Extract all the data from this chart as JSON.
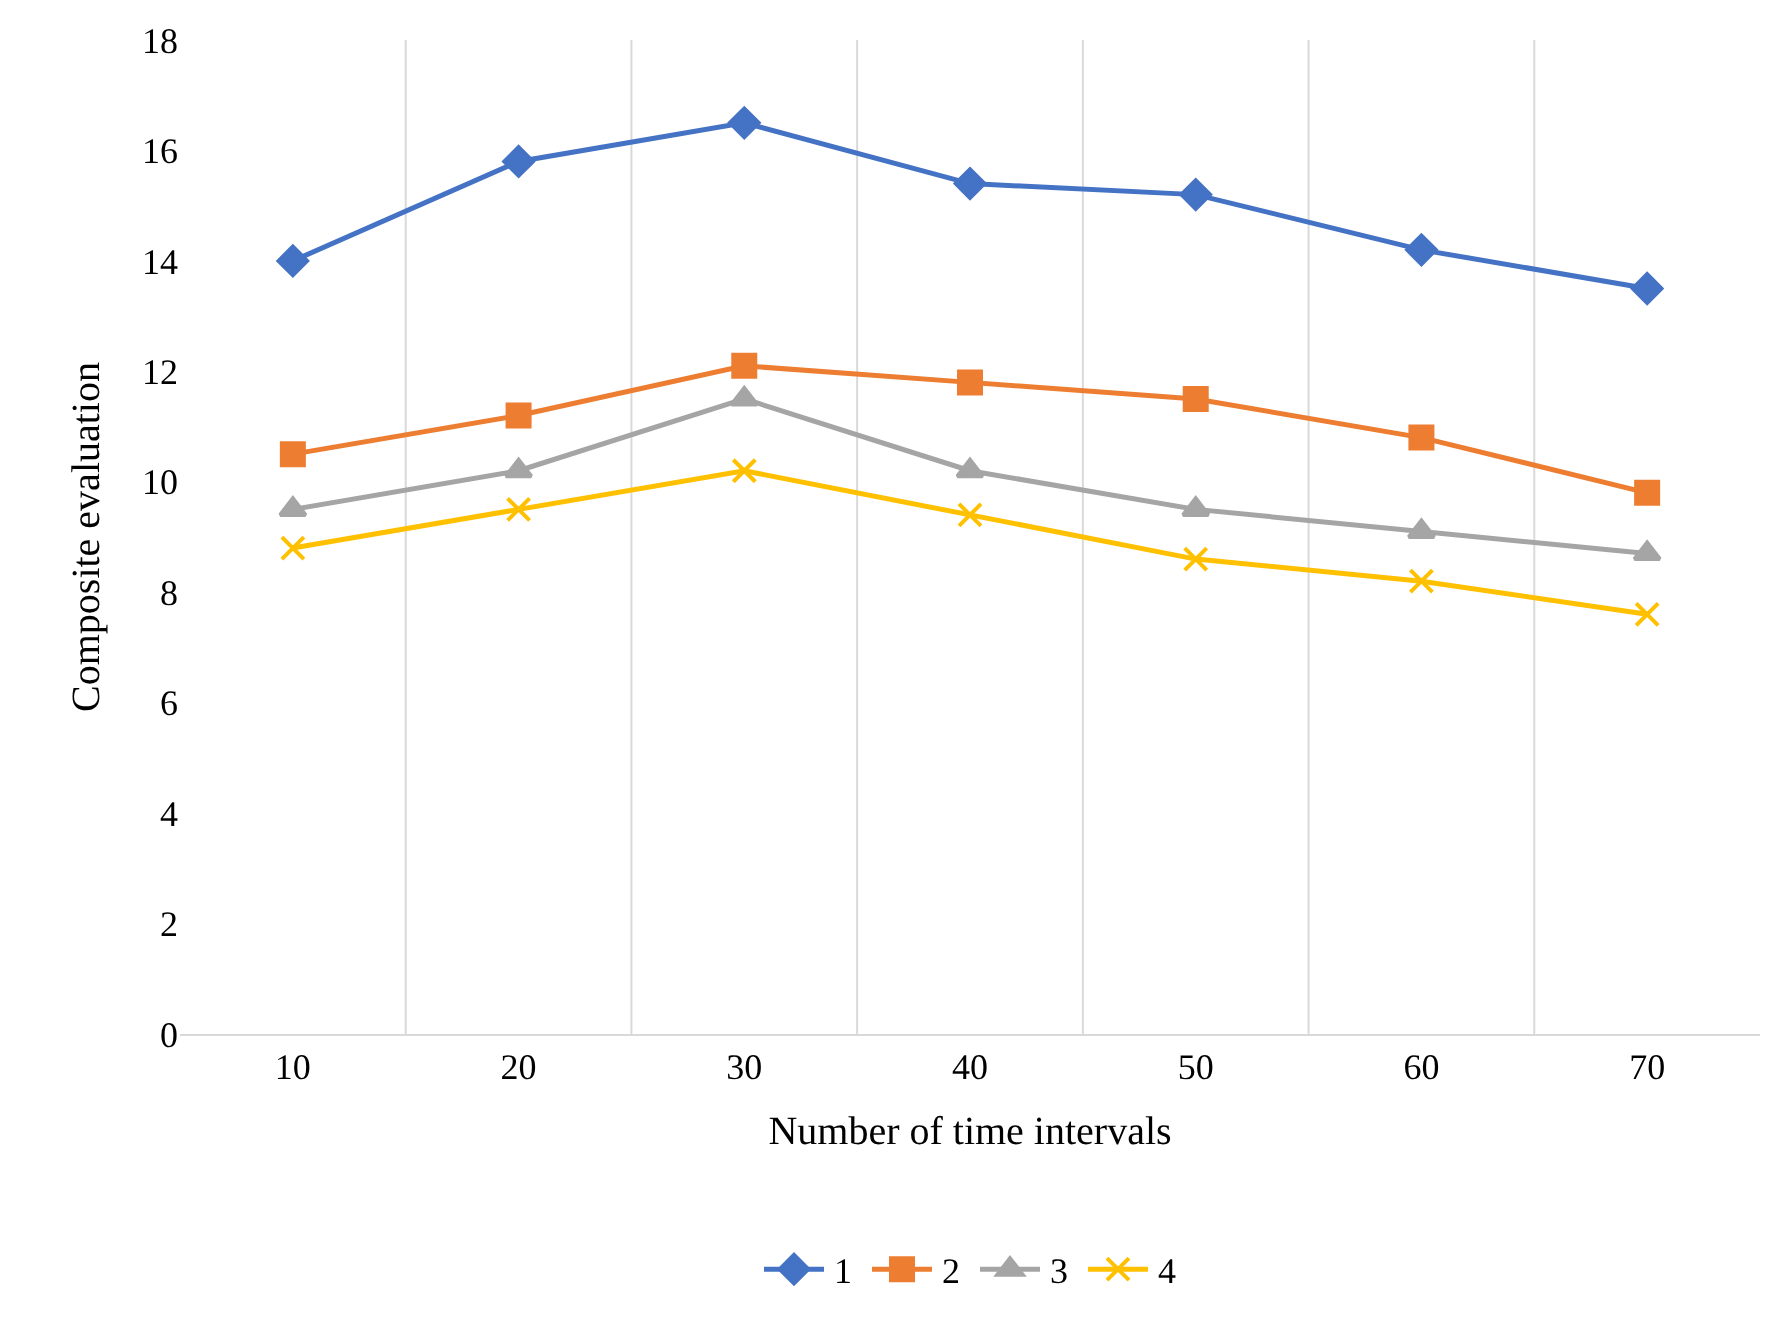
{
  "chart_data": {
    "type": "line",
    "xlabel": "Number of time intervals",
    "ylabel": "Composite evaluation",
    "categories": [
      "10",
      "20",
      "30",
      "40",
      "50",
      "60",
      "70"
    ],
    "series": [
      {
        "name": "1",
        "color": "#4472c4",
        "marker": "diamond",
        "values": [
          14.0,
          15.8,
          16.5,
          15.4,
          15.2,
          14.2,
          13.5
        ]
      },
      {
        "name": "2",
        "color": "#ed7d31",
        "marker": "square",
        "values": [
          10.5,
          11.2,
          12.1,
          11.8,
          11.5,
          10.8,
          9.8
        ]
      },
      {
        "name": "3",
        "color": "#a5a5a5",
        "marker": "triangle",
        "values": [
          9.5,
          10.2,
          11.5,
          10.2,
          9.5,
          9.1,
          8.7
        ]
      },
      {
        "name": "4",
        "color": "#ffc000",
        "marker": "cross",
        "values": [
          8.8,
          9.5,
          10.2,
          9.4,
          8.6,
          8.2,
          7.6
        ]
      }
    ],
    "ylim": [
      0,
      18
    ],
    "yticks": [
      0,
      2,
      4,
      6,
      8,
      10,
      12,
      14,
      16,
      18
    ],
    "grid": "x",
    "legend": "bottom",
    "line_style": "solid"
  }
}
